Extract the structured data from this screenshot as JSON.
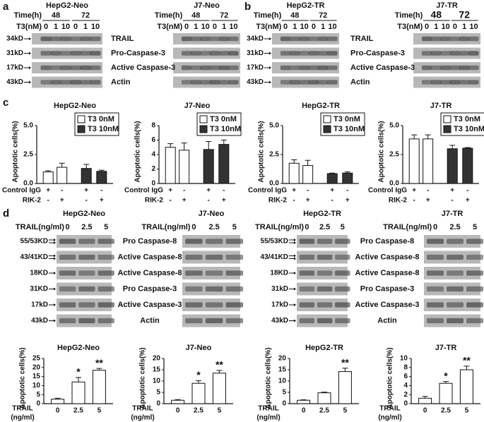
{
  "panel_labels": [
    "a",
    "b",
    "c",
    "d"
  ],
  "blots_ab": [
    {
      "cell": "HepG2-Neo",
      "time_label": "Time(h)",
      "times": [
        "48",
        "72"
      ],
      "dose_label": "T3(nM)",
      "doses": [
        "0",
        "1",
        "10",
        "0",
        "1",
        "10"
      ],
      "markers": [
        "34kD",
        "31kD",
        "17kD",
        "43kD"
      ]
    },
    {
      "cell": "J7-Neo",
      "time_label": "Time(h)",
      "times": [
        "48",
        "72"
      ],
      "dose_label": "T3(nM)",
      "doses": [
        "0",
        "1",
        "10",
        "0",
        "1",
        "10"
      ]
    },
    {
      "cell": "HepG2-TR",
      "time_label": "Time(h)",
      "times": [
        "48",
        "72"
      ],
      "dose_label": "T3(nM)",
      "doses": [
        "0",
        "1",
        "10",
        "0",
        "1",
        "10"
      ],
      "markers": [
        "34kD",
        "31kD",
        "17kD",
        "43kD"
      ]
    },
    {
      "cell": "J7-TR",
      "time_label": "Time(h)",
      "times": [
        "48",
        "72"
      ],
      "dose_label": "T3(nM)",
      "doses": [
        "0",
        "1",
        "10",
        "0",
        "1",
        "10"
      ]
    }
  ],
  "blots_d": [
    {
      "cell": "HepG2-Neo",
      "dose_label": "TRAIL(ng/ml)",
      "doses": [
        "0",
        "2.5",
        "5"
      ],
      "markers": [
        "55/53KD",
        "43/41KD",
        "18KD",
        "31KD",
        "17kD",
        "43kD"
      ]
    },
    {
      "cell": "J7-Neo",
      "dose_label": "TRAIL(ng/ml)",
      "doses": [
        "0",
        "2.5",
        "5"
      ]
    },
    {
      "cell": "HepG2-TR",
      "dose_label": "TRAIL(ng/ml)",
      "doses": [
        "0",
        "2.5",
        "5"
      ],
      "markers": [
        "55/53KD",
        "43/41KD",
        "18KD",
        "31kD",
        "17kD",
        "43kD"
      ]
    },
    {
      "cell": "J7-TR",
      "dose_label": "TRAIL(ng/ml)",
      "doses": [
        "0",
        "2.5",
        "5"
      ]
    }
  ],
  "proteins": [
    [
      "TRAIL",
      "Pro-Caspase-3",
      "Active Caspase-3",
      "Actin"
    ],
    [
      "TRAIL",
      "Pro-Caspase-3",
      "Active Caspase-3",
      "Actin"
    ],
    [
      "Pro Caspase-8",
      "Active Caspase-8",
      "Active Caspase-8",
      "Pro Caspase-3",
      "Active Caspase-3",
      "Actin"
    ],
    [
      "Pro Caspase-8",
      "Active Caspase-8",
      "Active Caspase-8",
      "Pro Caspase-3",
      "Active Caspase-3",
      "Actin"
    ]
  ],
  "chart_data": [
    {
      "type": "bar",
      "title": "HepG2-Neo",
      "y_label": "Apoptotic cells(%)",
      "ylim": [
        0,
        5
      ],
      "yticks": [
        {
          "value": 0,
          "label": "0.0"
        },
        {
          "value": 2.5,
          "label": "2.5"
        },
        {
          "value": 5,
          "label": "5.0"
        }
      ],
      "legend": "upper right",
      "series": [
        {
          "name": "T3 0nM",
          "color": "#ffffff",
          "values": [
            1.0,
            1.4,
            null,
            null
          ],
          "errors": [
            0.1,
            0.35,
            null,
            null
          ]
        },
        {
          "name": "T3 10nM",
          "color": "#333333",
          "values": [
            null,
            null,
            1.3,
            1.05
          ],
          "errors": [
            null,
            null,
            0.35,
            0.1
          ]
        }
      ],
      "conditions": [
        {
          "label": "Control IgG",
          "marks": [
            "+",
            "-",
            "+",
            "-"
          ]
        },
        {
          "label": "RIK-2",
          "marks": [
            "-",
            "+",
            "-",
            "+"
          ]
        }
      ]
    },
    {
      "type": "bar",
      "title": "J7-Neo",
      "y_label": "Apoptotic cells(%)",
      "ylim": [
        0,
        8
      ],
      "yticks": [
        0,
        2,
        4,
        6,
        8
      ],
      "legend": "upper right",
      "series": [
        {
          "name": "T3 0nM",
          "color": "#ffffff",
          "values": [
            5.0,
            4.6,
            null,
            null
          ],
          "errors": [
            0.5,
            1.0,
            null,
            null
          ]
        },
        {
          "name": "T3 10nM",
          "color": "#333333",
          "values": [
            null,
            null,
            4.7,
            5.4
          ],
          "errors": [
            null,
            null,
            1.1,
            0.6
          ]
        }
      ],
      "conditions": [
        {
          "label": "Control IgG",
          "marks": [
            "+",
            "-",
            "+",
            "-"
          ]
        },
        {
          "label": "RIK-2",
          "marks": [
            "-",
            "+",
            "-",
            "+"
          ]
        }
      ]
    },
    {
      "type": "bar",
      "title": "HepG2-TR",
      "y_label": "Apoptotic cells(%)",
      "ylim": [
        0,
        5
      ],
      "yticks": [
        {
          "value": 0,
          "label": "0.0"
        },
        {
          "value": 2.5,
          "label": "2.5"
        },
        {
          "value": 5,
          "label": "5.0"
        }
      ],
      "legend": "upper right",
      "series": [
        {
          "name": "T3 0nM",
          "color": "#ffffff",
          "values": [
            1.75,
            1.55,
            null,
            null
          ],
          "errors": [
            0.3,
            0.45,
            null,
            null
          ]
        },
        {
          "name": "T3 10nM",
          "color": "#333333",
          "values": [
            null,
            null,
            0.85,
            0.9
          ],
          "errors": [
            null,
            null,
            0.05,
            0.1
          ]
        }
      ],
      "conditions": [
        {
          "label": "Control IgG",
          "marks": [
            "+",
            "-",
            "+",
            "-"
          ]
        },
        {
          "label": "RIK-2",
          "marks": [
            "-",
            "+",
            "-",
            "+"
          ]
        }
      ]
    },
    {
      "type": "bar",
      "title": "J7-TR",
      "y_label": "Apoptotic cells(%)",
      "ylim": [
        0,
        5
      ],
      "yticks": [
        {
          "value": 0,
          "label": "0.0"
        },
        {
          "value": 2.5,
          "label": "2.5"
        },
        {
          "value": 5,
          "label": "5.0"
        }
      ],
      "legend": "upper right",
      "series": [
        {
          "name": "T3 0nM",
          "color": "#ffffff",
          "values": [
            3.85,
            3.85,
            null,
            null
          ],
          "errors": [
            0.35,
            0.35,
            null,
            null
          ]
        },
        {
          "name": "T3 10nM",
          "color": "#333333",
          "values": [
            null,
            null,
            3.0,
            3.05
          ],
          "errors": [
            null,
            null,
            0.3,
            0.05
          ]
        }
      ],
      "conditions": [
        {
          "label": "Control IgG",
          "marks": [
            "+",
            "-",
            "+",
            "-"
          ]
        },
        {
          "label": "RIK-2",
          "marks": [
            "-",
            "+",
            "-",
            "+"
          ]
        }
      ]
    },
    {
      "type": "bar",
      "title": "HepG2-Neo",
      "y_label": "Apoptotic cells(%)",
      "x_label": [
        "TRAIL",
        "(ng/ml)"
      ],
      "ylim": [
        0,
        25
      ],
      "yticks": [
        0,
        5,
        10,
        15,
        20,
        25
      ],
      "categories": [
        "0",
        "2.5",
        "5"
      ],
      "color": "#ffffff",
      "values": [
        2.5,
        12,
        18.5
      ],
      "errors": [
        0.5,
        2.5,
        1.0
      ],
      "annotations": [
        null,
        "*",
        "**"
      ]
    },
    {
      "type": "bar",
      "title": "J7-Neo",
      "y_label": "Apoptotic cells(%)",
      "x_label": [
        "TRAIL",
        "(ng/ml)"
      ],
      "ylim": [
        0,
        20
      ],
      "yticks": [
        0,
        5,
        10,
        15,
        20
      ],
      "categories": [
        "0",
        "2.5",
        "5"
      ],
      "color": "#ffffff",
      "values": [
        1.5,
        9,
        13.5
      ],
      "errors": [
        0.3,
        1.2,
        1.2
      ],
      "annotations": [
        null,
        "*",
        "**"
      ]
    },
    {
      "type": "bar",
      "title": "HepG2-TR",
      "y_label": "Apoptotic cells(%)",
      "x_label": [
        "TRAIL",
        "(ng/ml)"
      ],
      "ylim": [
        0,
        20
      ],
      "yticks": [
        0,
        5,
        10,
        15,
        20
      ],
      "categories": [
        "0",
        "2.5",
        "5"
      ],
      "color": "#ffffff",
      "values": [
        1.5,
        4.8,
        14.2
      ],
      "errors": [
        0.2,
        0.3,
        1.5
      ],
      "annotations": [
        null,
        null,
        "**"
      ]
    },
    {
      "type": "bar",
      "title": "J7-TR",
      "y_label": "Apoptotic cells(%)",
      "x_label": [
        "TRAIL",
        "(ng/ml)"
      ],
      "ylim": [
        0,
        10
      ],
      "yticks": [
        0,
        2,
        4,
        6,
        8,
        10
      ],
      "categories": [
        "0",
        "2.5",
        "5"
      ],
      "color": "#ffffff",
      "values": [
        1.2,
        4.5,
        7.5
      ],
      "errors": [
        0.4,
        0.4,
        0.8
      ],
      "annotations": [
        null,
        "*",
        "**"
      ]
    }
  ]
}
